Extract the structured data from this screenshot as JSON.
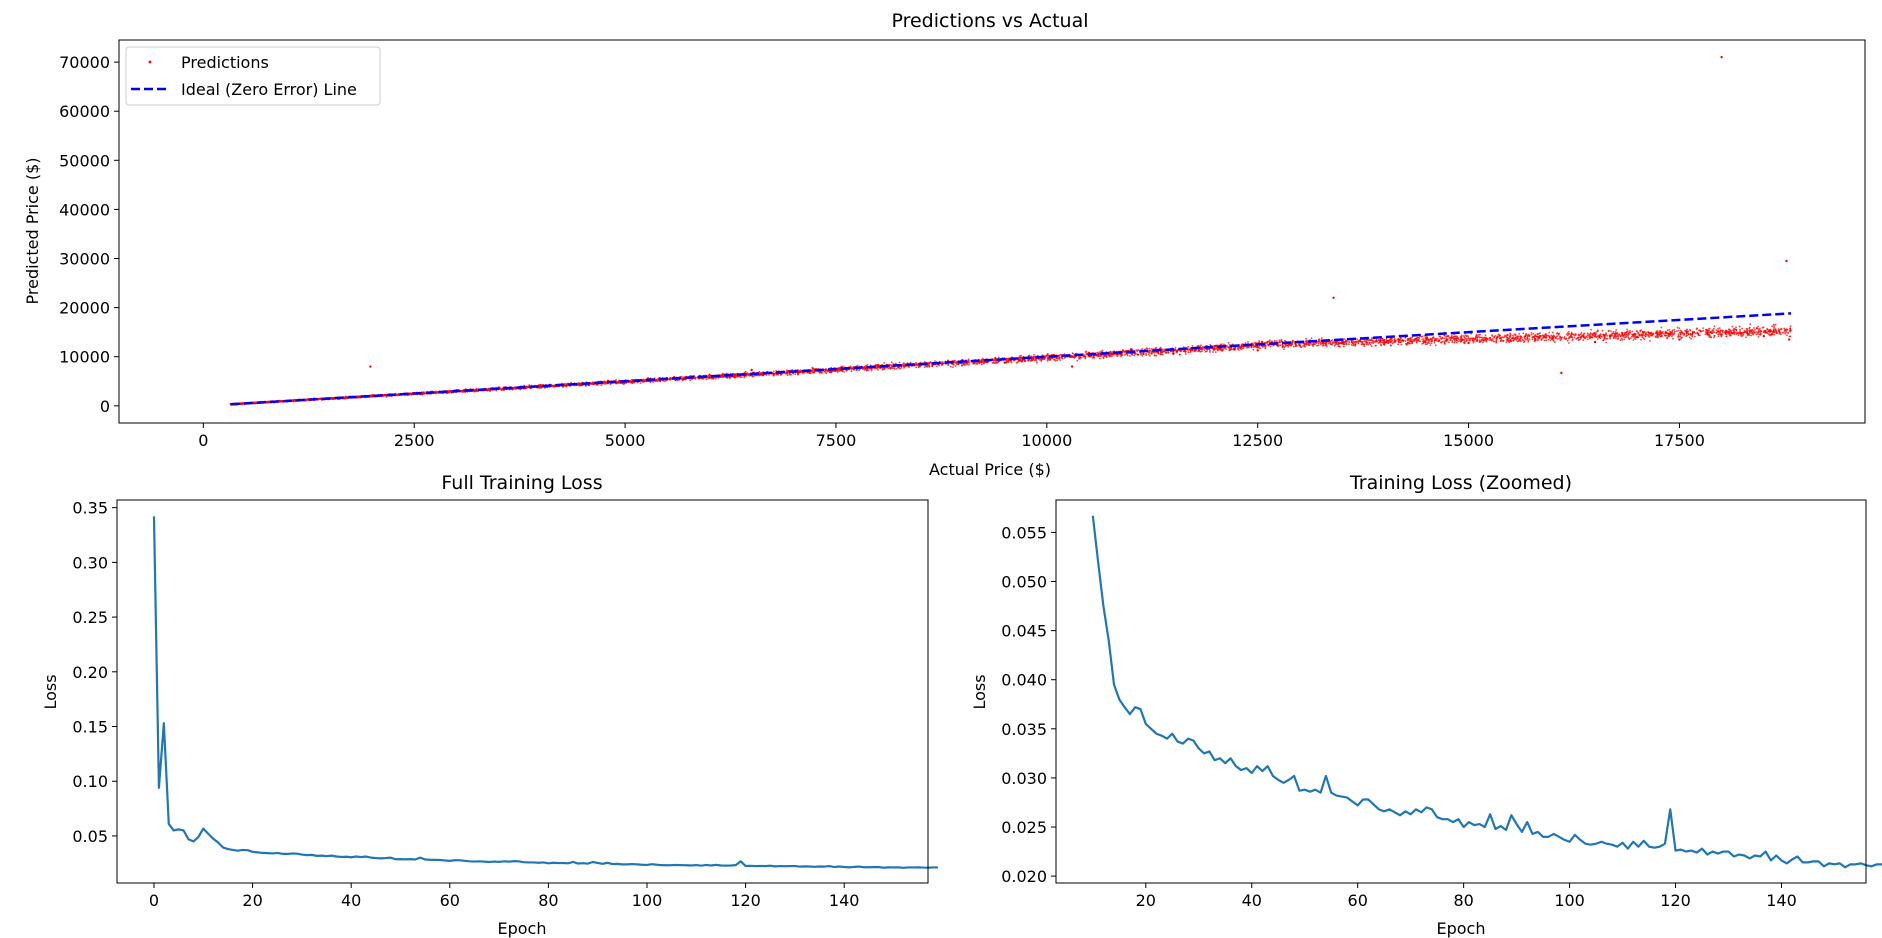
{
  "chart_data": [
    {
      "type": "scatter",
      "title": "Predictions vs Actual",
      "xlabel": "Actual Price ($)",
      "ylabel": "Predicted Price ($)",
      "xlim": [
        -1000,
        19700
      ],
      "ylim": [
        -3500,
        74500
      ],
      "xticks": [
        0,
        2500,
        5000,
        7500,
        10000,
        12500,
        15000,
        17500
      ],
      "xtick_labels": [
        "0",
        "2500",
        "5000",
        "7500",
        "10000",
        "12500",
        "15000",
        "17500"
      ],
      "yticks": [
        0,
        10000,
        20000,
        30000,
        40000,
        50000,
        60000,
        70000
      ],
      "ytick_labels": [
        "0",
        "10000",
        "20000",
        "30000",
        "40000",
        "50000",
        "60000",
        "70000"
      ],
      "legend_position": "upper-left",
      "colors": {
        "predictions": "#ff0000",
        "ideal": "#0000ff"
      },
      "series": [
        {
          "name": "Predictions",
          "kind": "scatter",
          "points": [
            [
              326,
              330
            ],
            [
              400,
              420
            ],
            [
              500,
              520
            ],
            [
              600,
              610
            ],
            [
              700,
              720
            ],
            [
              800,
              800
            ],
            [
              900,
              930
            ],
            [
              1000,
              1020
            ],
            [
              1100,
              1090
            ],
            [
              1200,
              1250
            ],
            [
              1300,
              1280
            ],
            [
              1400,
              1420
            ],
            [
              1500,
              1470
            ],
            [
              1600,
              1650
            ],
            [
              1800,
              1750
            ],
            [
              1980,
              8000
            ],
            [
              2000,
              2100
            ],
            [
              2200,
              2150
            ],
            [
              2500,
              2600
            ],
            [
              2700,
              2550
            ],
            [
              3000,
              3150
            ],
            [
              3300,
              3200
            ],
            [
              3500,
              3700
            ],
            [
              3800,
              3600
            ],
            [
              4000,
              4200
            ],
            [
              4300,
              4100
            ],
            [
              4500,
              4600
            ],
            [
              4800,
              5100
            ],
            [
              5000,
              4900
            ],
            [
              5300,
              5500
            ],
            [
              5600,
              5300
            ],
            [
              6000,
              6200
            ],
            [
              6300,
              5800
            ],
            [
              6500,
              7300
            ],
            [
              7000,
              6900
            ],
            [
              7500,
              7400
            ],
            [
              8000,
              8300
            ],
            [
              8500,
              8200
            ],
            [
              9000,
              9300
            ],
            [
              9500,
              8800
            ],
            [
              10000,
              10200
            ],
            [
              10300,
              8000
            ],
            [
              10500,
              10800
            ],
            [
              11000,
              11500
            ],
            [
              11500,
              10600
            ],
            [
              12000,
              12200
            ],
            [
              12500,
              11300
            ],
            [
              13000,
              12300
            ],
            [
              13400,
              22000
            ],
            [
              13500,
              12800
            ],
            [
              14000,
              12500
            ],
            [
              14500,
              13500
            ],
            [
              15000,
              12800
            ],
            [
              15500,
              13200
            ],
            [
              16000,
              13800
            ],
            [
              16100,
              6700
            ],
            [
              16500,
              13000
            ],
            [
              17000,
              14000
            ],
            [
              17500,
              13500
            ],
            [
              18000,
              71000
            ],
            [
              18000,
              14500
            ],
            [
              18500,
              14200
            ],
            [
              18770,
              29500
            ],
            [
              18800,
              13500
            ]
          ]
        },
        {
          "name": "Ideal (Zero Error) Line",
          "kind": "line",
          "points": [
            [
              326,
              326
            ],
            [
              18823,
              18823
            ]
          ]
        }
      ]
    },
    {
      "type": "line",
      "title": "Full Training Loss",
      "xlabel": "Epoch",
      "ylabel": "Loss",
      "xlim": [
        -7.5,
        157
      ],
      "ylim": [
        0.007,
        0.357
      ],
      "xticks": [
        0,
        20,
        40,
        60,
        80,
        100,
        120,
        140
      ],
      "xtick_labels": [
        "0",
        "20",
        "40",
        "60",
        "80",
        "100",
        "120",
        "140"
      ],
      "yticks": [
        0.05,
        0.1,
        0.15,
        0.2,
        0.25,
        0.3,
        0.35
      ],
      "ytick_labels": [
        "0.05",
        "0.10",
        "0.15",
        "0.20",
        "0.25",
        "0.30",
        "0.35"
      ],
      "color": "#1f77b4",
      "x_start": 0,
      "values": [
        0.342,
        0.094,
        0.153,
        0.061,
        0.055,
        0.056,
        0.055,
        0.047,
        0.045,
        0.049,
        0.0567,
        0.052,
        0.0475,
        0.044,
        0.0395,
        0.038,
        0.0372,
        0.0365,
        0.0372,
        0.037
      ]
    },
    {
      "type": "line",
      "title": "Training Loss (Zoomed)",
      "xlabel": "Epoch",
      "ylabel": "Loss",
      "xlim": [
        3.05,
        155.95
      ],
      "ylim": [
        0.0193,
        0.0583
      ],
      "xticks": [
        20,
        40,
        60,
        80,
        100,
        120,
        140
      ],
      "xtick_labels": [
        "20",
        "40",
        "60",
        "80",
        "100",
        "120",
        "140"
      ],
      "yticks": [
        0.02,
        0.025,
        0.03,
        0.035,
        0.04,
        0.045,
        0.05,
        0.055
      ],
      "ytick_labels": [
        "0.020",
        "0.025",
        "0.030",
        "0.035",
        "0.040",
        "0.045",
        "0.050",
        "0.055"
      ],
      "color": "#1f77b4",
      "x_start": 10,
      "values": [
        0.0567,
        0.052,
        0.0475,
        0.044,
        0.0395,
        0.038,
        0.0372,
        0.0365,
        0.0372,
        0.037,
        0.0355,
        0.035,
        0.0345,
        0.0343,
        0.034,
        0.0345,
        0.0337,
        0.0335,
        0.034,
        0.0338,
        0.033,
        0.0325,
        0.0327,
        0.0318,
        0.032,
        0.0315,
        0.032,
        0.0312,
        0.0308,
        0.031,
        0.0305,
        0.0312,
        0.0307,
        0.0312,
        0.0302,
        0.0298,
        0.0295,
        0.0298,
        0.0302,
        0.0287,
        0.0288,
        0.0286,
        0.0288,
        0.0285,
        0.0302,
        0.0285,
        0.0282,
        0.0281,
        0.028,
        0.0276,
        0.0272,
        0.0278,
        0.0278,
        0.0273,
        0.0268,
        0.0266,
        0.0268,
        0.0265,
        0.0262,
        0.0266,
        0.0263,
        0.0268,
        0.0265,
        0.027,
        0.0268,
        0.026,
        0.0258,
        0.0258,
        0.0255,
        0.0258,
        0.025,
        0.0255,
        0.0252,
        0.0253,
        0.025,
        0.0263,
        0.0248,
        0.0251,
        0.0247,
        0.0262,
        0.0253,
        0.0245,
        0.0255,
        0.0243,
        0.0245,
        0.024,
        0.024,
        0.0243,
        0.024,
        0.0237,
        0.0235,
        0.0242,
        0.0237,
        0.0233,
        0.0232,
        0.0233,
        0.0235,
        0.0233,
        0.0232,
        0.023,
        0.0234,
        0.0228,
        0.0235,
        0.023,
        0.0236,
        0.023,
        0.0229,
        0.023,
        0.0233,
        0.0268,
        0.0226,
        0.0227,
        0.0225,
        0.0226,
        0.0224,
        0.0228,
        0.0222,
        0.0225,
        0.0223,
        0.0225,
        0.0225,
        0.022,
        0.0222,
        0.0221,
        0.0218,
        0.0221,
        0.022,
        0.0225,
        0.0216,
        0.0221,
        0.0216,
        0.0213,
        0.0217,
        0.022,
        0.0214,
        0.0214,
        0.0215,
        0.0215,
        0.021,
        0.0213,
        0.0212,
        0.0213,
        0.0209,
        0.0212,
        0.0212,
        0.0213,
        0.0211,
        0.021,
        0.0212,
        0.0212
      ]
    }
  ]
}
